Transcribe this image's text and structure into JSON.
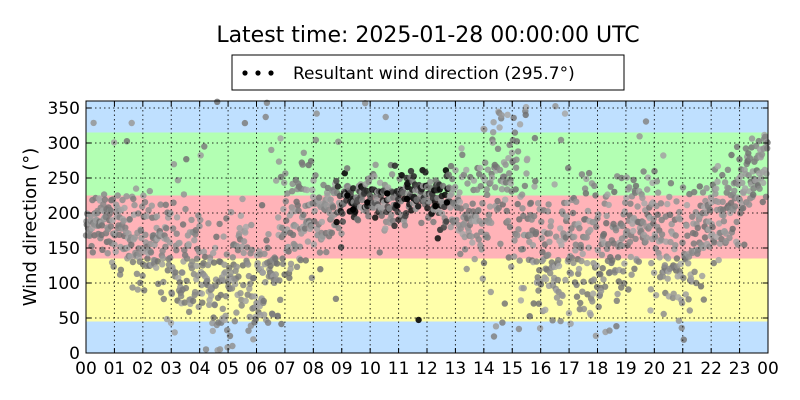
{
  "chart_data": {
    "type": "scatter",
    "title": "Latest time: 2025-01-28 00:00:00 UTC",
    "legend": {
      "label": "Resultant wind direction (295.7°)",
      "position": "top-center"
    },
    "ylabel": "Wind direction (°)",
    "xlabel": "",
    "xlim": [
      0,
      24
    ],
    "ylim": [
      0,
      360
    ],
    "x_tick_labels": [
      "00",
      "01",
      "02",
      "03",
      "04",
      "05",
      "06",
      "07",
      "08",
      "09",
      "10",
      "11",
      "12",
      "13",
      "14",
      "15",
      "16",
      "17",
      "18",
      "19",
      "20",
      "21",
      "22",
      "23",
      "00"
    ],
    "y_ticks": [
      0,
      50,
      100,
      150,
      200,
      250,
      300,
      350
    ],
    "grid": true,
    "bands": [
      {
        "from": 0,
        "to": 45,
        "color": "#bfe0ff"
      },
      {
        "from": 45,
        "to": 135,
        "color": "#ffffaa"
      },
      {
        "from": 135,
        "to": 225,
        "color": "#ffb3b8"
      },
      {
        "from": 225,
        "to": 315,
        "color": "#b3ffb3"
      },
      {
        "from": 315,
        "to": 360,
        "color": "#bfe0ff"
      }
    ],
    "series": [
      {
        "marker_color_old": "#999999",
        "marker_color_recent": "#000000",
        "profile": [
          [
            0.0,
            180,
            12
          ],
          [
            0.5,
            185,
            15
          ],
          [
            1.0,
            175,
            25
          ],
          [
            1.5,
            165,
            30
          ],
          [
            2.0,
            165,
            35
          ],
          [
            2.5,
            150,
            40
          ],
          [
            3.0,
            130,
            45
          ],
          [
            3.5,
            125,
            40
          ],
          [
            4.0,
            100,
            35
          ],
          [
            4.5,
            95,
            40
          ],
          [
            5.0,
            100,
            40
          ],
          [
            5.5,
            120,
            45
          ],
          [
            6.0,
            100,
            40
          ],
          [
            6.5,
            110,
            50
          ],
          [
            7.0,
            180,
            45
          ],
          [
            7.5,
            200,
            40
          ],
          [
            8.0,
            190,
            40
          ],
          [
            8.5,
            205,
            25
          ],
          [
            9.0,
            215,
            18
          ],
          [
            9.5,
            220,
            15
          ],
          [
            10.0,
            225,
            15
          ],
          [
            10.5,
            220,
            20
          ],
          [
            11.0,
            220,
            20
          ],
          [
            11.5,
            225,
            20
          ],
          [
            12.0,
            215,
            15
          ],
          [
            12.5,
            220,
            20
          ],
          [
            13.0,
            220,
            30
          ],
          [
            13.5,
            200,
            50
          ],
          [
            14.0,
            230,
            60
          ],
          [
            14.5,
            260,
            70
          ],
          [
            15.0,
            250,
            80
          ],
          [
            15.5,
            180,
            70
          ],
          [
            16.0,
            140,
            50
          ],
          [
            16.5,
            130,
            50
          ],
          [
            17.0,
            140,
            60
          ],
          [
            17.5,
            150,
            60
          ],
          [
            18.0,
            150,
            55
          ],
          [
            18.5,
            160,
            50
          ],
          [
            19.0,
            175,
            45
          ],
          [
            19.5,
            190,
            40
          ],
          [
            20.0,
            185,
            45
          ],
          [
            20.5,
            150,
            45
          ],
          [
            21.0,
            130,
            50
          ],
          [
            21.5,
            160,
            40
          ],
          [
            22.0,
            190,
            35
          ],
          [
            22.5,
            200,
            30
          ],
          [
            23.0,
            230,
            30
          ],
          [
            23.5,
            260,
            35
          ],
          [
            24.0,
            290,
            30
          ]
        ]
      }
    ]
  }
}
